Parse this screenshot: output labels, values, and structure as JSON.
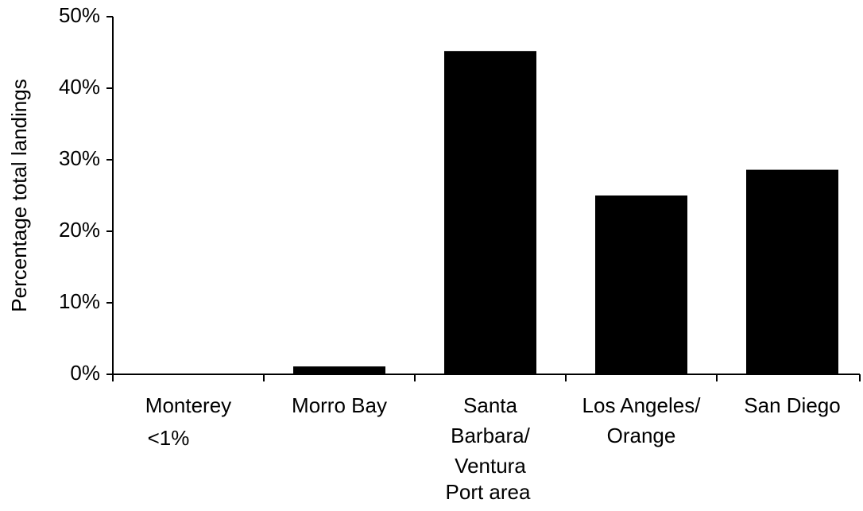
{
  "chart_data": {
    "type": "bar",
    "categories": [
      [
        "Monterey"
      ],
      [
        "Morro Bay"
      ],
      [
        "Santa",
        "Barbara/",
        "Ventura"
      ],
      [
        "Los Angeles/",
        "Orange"
      ],
      [
        "San Diego"
      ]
    ],
    "values": [
      0.1,
      1.1,
      45.2,
      25,
      28.6
    ],
    "value_labels": [
      "<1%",
      null,
      null,
      null,
      null
    ],
    "color": "#000000",
    "x_label": "Port area",
    "y_label": "Percentage total landings",
    "ylim": [
      0,
      50
    ],
    "yticks": [
      {
        "value": 0,
        "label": "0%"
      },
      {
        "value": 10,
        "label": "10%"
      },
      {
        "value": 20,
        "label": "20%"
      },
      {
        "value": 30,
        "label": "30%"
      },
      {
        "value": 40,
        "label": "40%"
      },
      {
        "value": 50,
        "label": "50%"
      }
    ],
    "grid": false
  }
}
